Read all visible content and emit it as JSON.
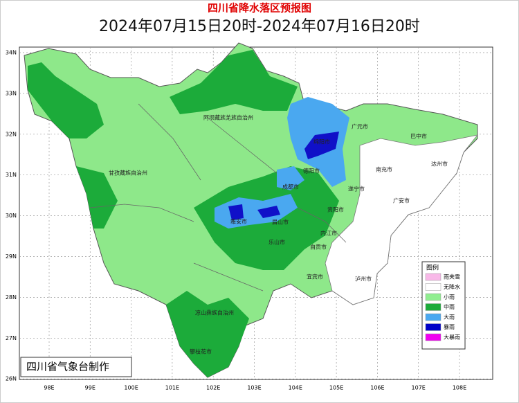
{
  "header": {
    "title": "四川省降水落区预报图",
    "subtitle": "2024年07月15日20时-2024年07月16日20时"
  },
  "axes": {
    "lat_labels": [
      "34N",
      "33N",
      "32N",
      "31N",
      "30N",
      "29N",
      "28N",
      "27N",
      "26N"
    ],
    "lon_labels": [
      "98E",
      "99E",
      "100E",
      "101E",
      "102E",
      "103E",
      "104E",
      "105E",
      "106E",
      "107E",
      "108E"
    ]
  },
  "places": [
    "阿坝藏族羌族自治州",
    "甘孜藏族自治州",
    "凉山彝族自治州",
    "广元市",
    "巴中市",
    "绵阳市",
    "德阳市",
    "南充市",
    "达州市",
    "成都市",
    "遂宁市",
    "广安市",
    "资阳市",
    "雅安市",
    "眉山市",
    "乐山市",
    "内江市",
    "自贡市",
    "宜宾市",
    "泸州市",
    "攀枝花市"
  ],
  "legend": {
    "title": "图例",
    "items": [
      "雨夹雪",
      "无降水",
      "小雨",
      "中雨",
      "大雨",
      "暴雨",
      "大暴雨"
    ]
  },
  "credit": "四川省气象台制作"
}
